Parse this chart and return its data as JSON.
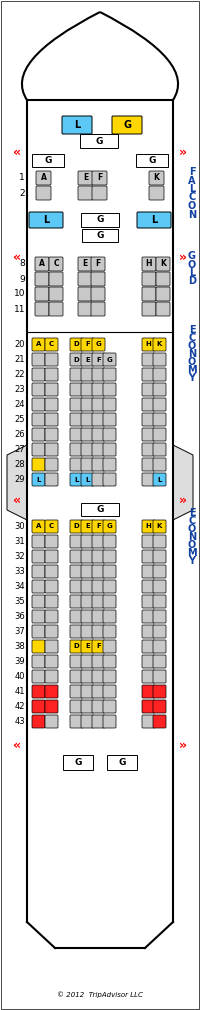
{
  "footer": "© 2012  TripAdvisor LLC",
  "bg_color": "#ffffff",
  "yellow": "#FFD700",
  "blue": "#5BC8F5",
  "gray": "#C8C8C8",
  "red": "#FF2222",
  "dark_blue_text": "#1040A0"
}
